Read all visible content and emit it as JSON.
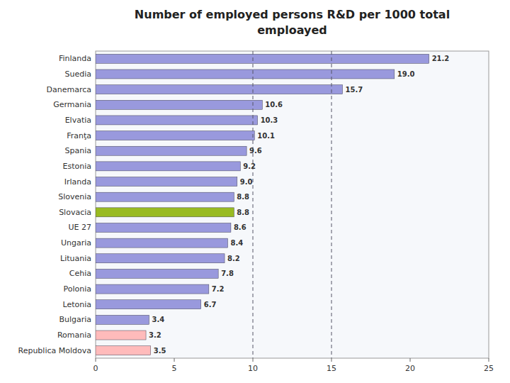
{
  "chart_data": {
    "type": "bar",
    "orientation": "horizontal",
    "title": "Number of employed persons  R&D per 1000 total",
    "subtitle": "emploayed",
    "categories": [
      "Finlanda",
      "Suedia",
      "Danemarca",
      "Germania",
      "Elvatia",
      "Franţa",
      "Spania",
      "Estonia",
      "Irlanda",
      "Slovenia",
      "Slovacia",
      "UE 27",
      "Ungaria",
      "Lituania",
      "Cehia",
      "Polonia",
      "Letonia",
      "Bulgaria",
      "Romania",
      "Republica Moldova"
    ],
    "values": [
      21.2,
      19.0,
      15.7,
      10.6,
      10.3,
      10.1,
      9.6,
      9.2,
      9.0,
      8.8,
      8.8,
      8.6,
      8.4,
      8.2,
      7.8,
      7.2,
      6.7,
      3.4,
      3.2,
      3.5
    ],
    "value_labels": [
      "21.2",
      "19.0",
      "15.7",
      "10.6",
      "10.3",
      "10.1",
      "9.6",
      "9.2",
      "9.0",
      "8.8",
      "8.8",
      "8.6",
      "8.4",
      "8.2",
      "7.8",
      "7.2",
      "6.7",
      "3.4",
      "3.2",
      "3.5"
    ],
    "colors": [
      "#9999dd",
      "#9999dd",
      "#9999dd",
      "#9999dd",
      "#9999dd",
      "#9999dd",
      "#9999dd",
      "#9999dd",
      "#9999dd",
      "#9999dd",
      "#99bb22",
      "#9999dd",
      "#9999dd",
      "#9999dd",
      "#9999dd",
      "#9999dd",
      "#9999dd",
      "#9999dd",
      "#ffbbbb",
      "#ffbbbb"
    ],
    "xlim": [
      0,
      25
    ],
    "xticks": [
      0,
      5,
      10,
      15,
      20,
      25
    ],
    "reference_lines": [
      10,
      15
    ],
    "data_labels": true,
    "grid": false
  }
}
